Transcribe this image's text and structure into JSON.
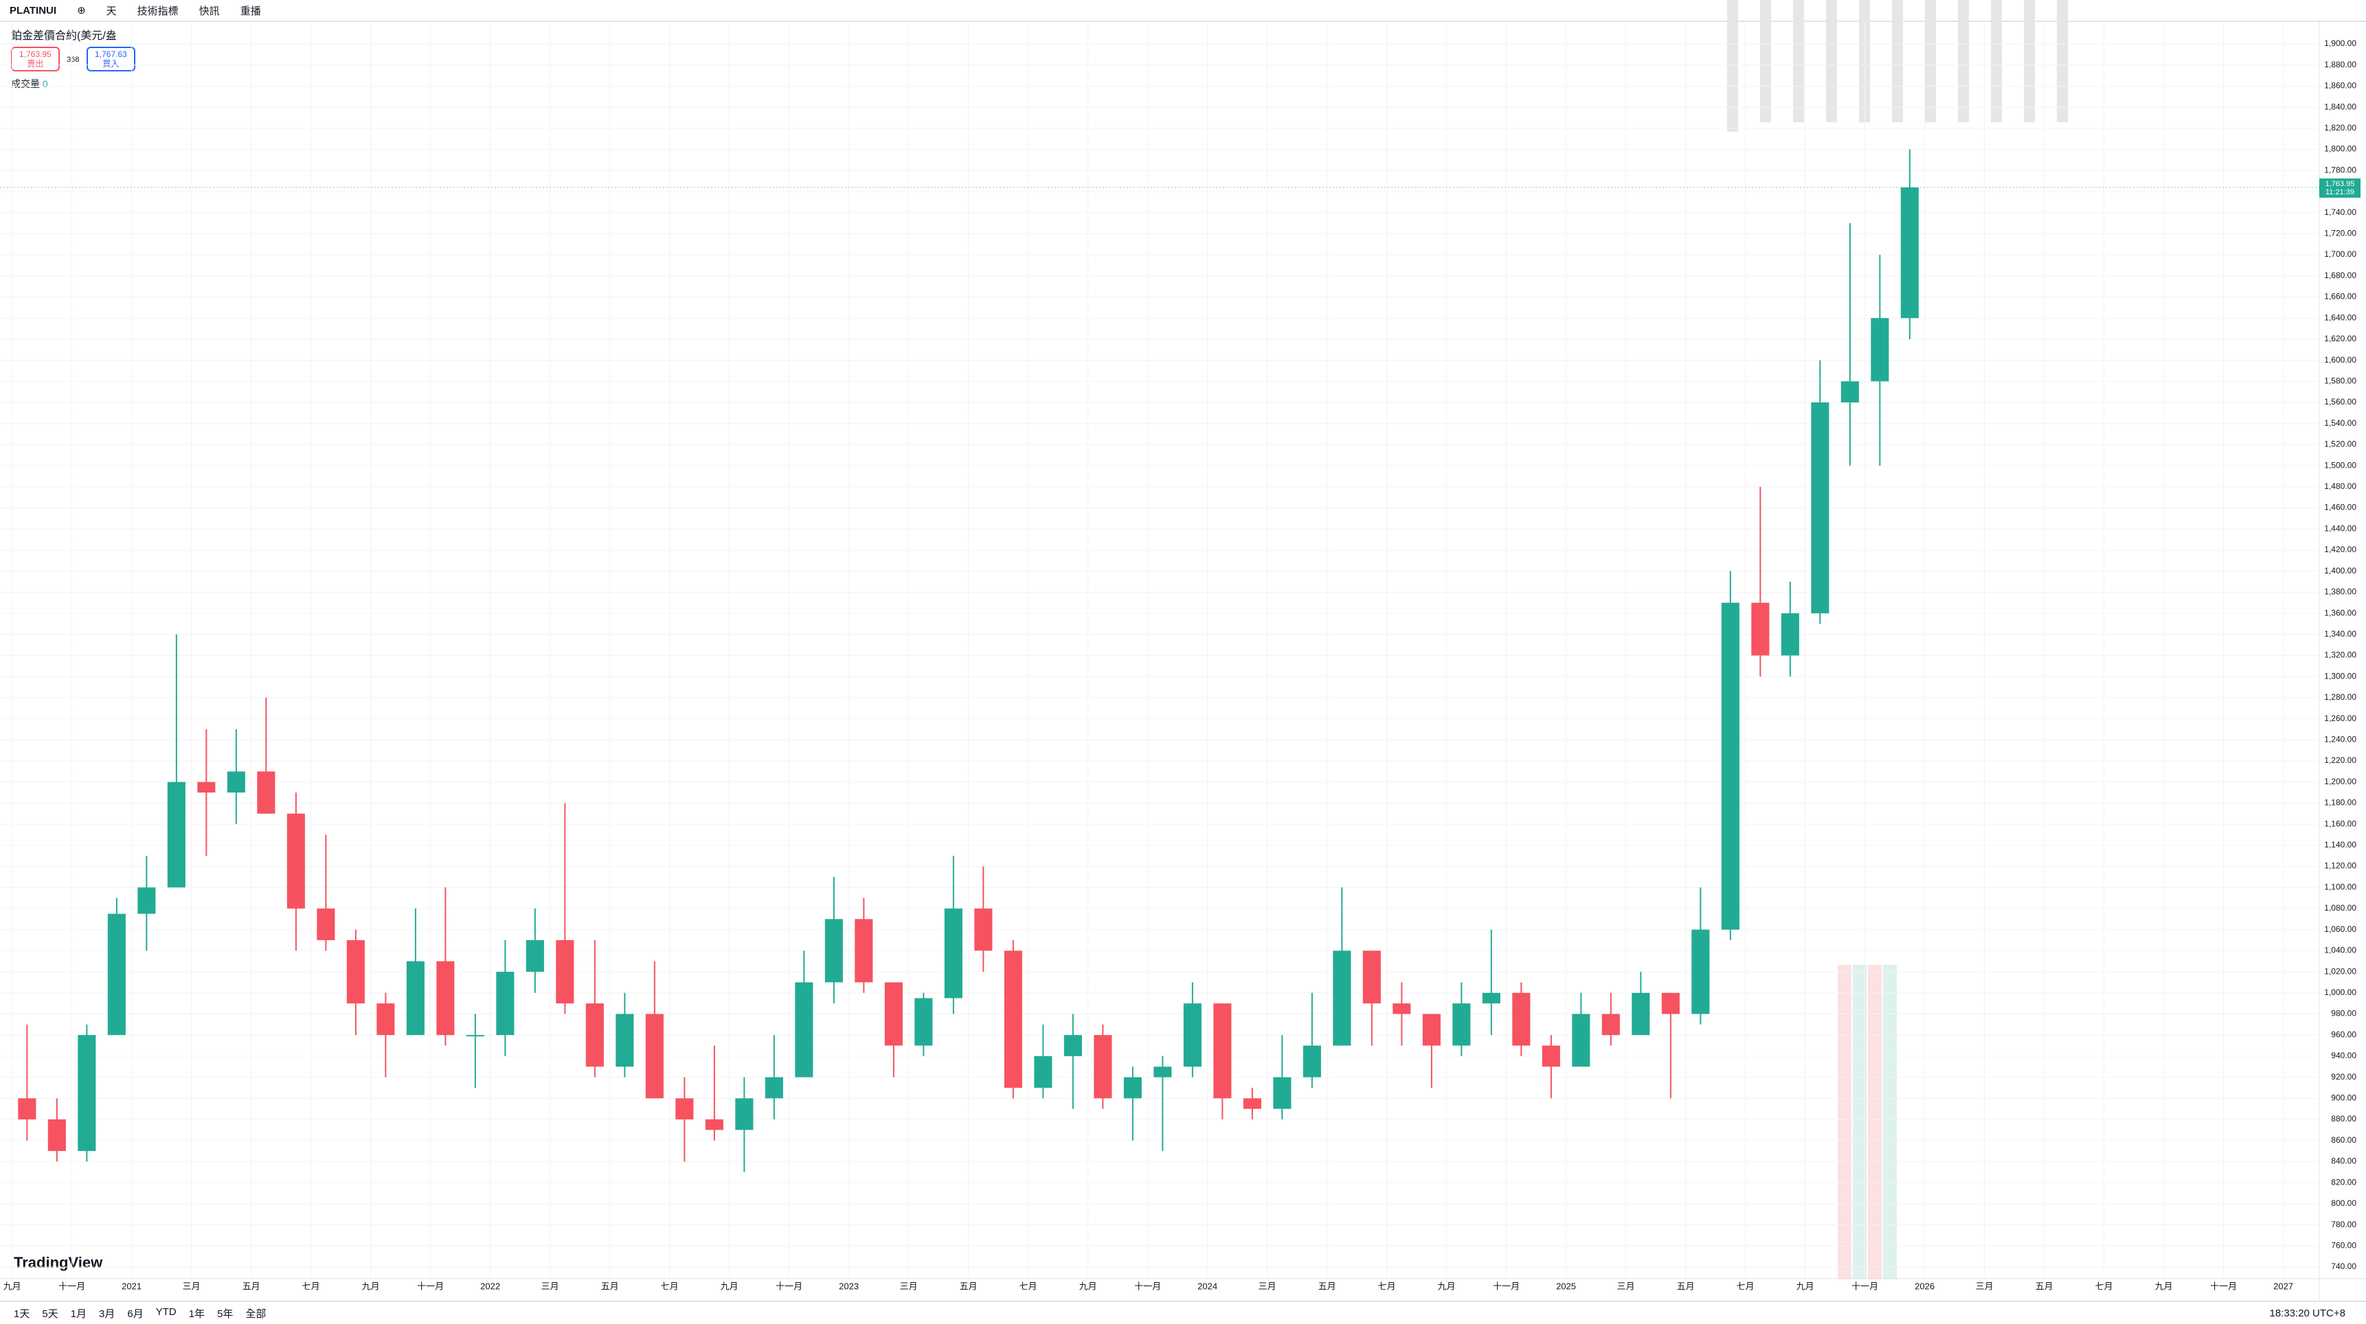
{
  "toolbar": {
    "symbol": "PLATINUI",
    "interval": "天",
    "indicators": "技術指標",
    "alerts": "快訊",
    "replay": "重播"
  },
  "legend": {
    "title": "鉑金差價合約(美元/盎",
    "sell_price": "1,763.95",
    "sell_label": "賣出",
    "spread": "368",
    "buy_price": "1,767.63",
    "buy_label": "買入",
    "volume_label": "成交量",
    "volume_value": "0"
  },
  "logo": "TradingView",
  "bottom_bar": {
    "ranges": [
      "1天",
      "5天",
      "1月",
      "3月",
      "6月",
      "YTD",
      "1年",
      "5年",
      "全部"
    ],
    "clock": "18:33:20 UTC+8"
  },
  "chart_data": {
    "type": "candlestick",
    "up_color": "#22ab94",
    "down_color": "#f7525f",
    "grid": true,
    "x_labels": [
      "九月",
      "十一月",
      "2021",
      "三月",
      "五月",
      "七月",
      "九月",
      "十一月",
      "2022",
      "三月",
      "五月",
      "七月",
      "九月",
      "十一月",
      "2023",
      "三月",
      "五月",
      "七月",
      "九月",
      "十一月",
      "2024",
      "三月",
      "五月",
      "七月",
      "九月",
      "十一月",
      "2025",
      "三月",
      "五月",
      "七月",
      "九月",
      "十一月",
      "2026",
      "三月",
      "五月",
      "七月",
      "九月",
      "十一月",
      "2027"
    ],
    "open": [
      900,
      880,
      850,
      960,
      1075,
      1100,
      1200,
      1190,
      1210,
      1170,
      1080,
      1050,
      990,
      960,
      1030,
      960,
      960,
      1020,
      1050,
      990,
      930,
      980,
      900,
      880,
      870,
      900,
      920,
      1010,
      1070,
      1010,
      950,
      995,
      1080,
      1040,
      910,
      940,
      960,
      900,
      920,
      930,
      990,
      900,
      890,
      920,
      950,
      1040,
      990,
      980,
      950,
      990,
      1000,
      950,
      930,
      980,
      960,
      1000,
      980,
      1060,
      1370,
      1320,
      1360,
      1560,
      1580,
      1640
    ],
    "high": [
      970,
      900,
      970,
      1090,
      1130,
      1340,
      1250,
      1250,
      1280,
      1190,
      1150,
      1060,
      1000,
      1080,
      1100,
      980,
      1050,
      1080,
      1180,
      1050,
      1000,
      1030,
      920,
      950,
      920,
      960,
      1040,
      1110,
      1090,
      1010,
      1000,
      1130,
      1120,
      1050,
      970,
      980,
      970,
      930,
      940,
      1010,
      990,
      910,
      960,
      1000,
      1100,
      1040,
      1010,
      980,
      1010,
      1060,
      1010,
      960,
      1000,
      1000,
      1020,
      1000,
      1100,
      1400,
      1480,
      1390,
      1600,
      1730,
      1700,
      1800
    ],
    "low": [
      860,
      840,
      840,
      960,
      1040,
      1100,
      1130,
      1160,
      1170,
      1040,
      1040,
      960,
      920,
      960,
      950,
      910,
      940,
      1000,
      980,
      920,
      920,
      900,
      840,
      860,
      830,
      880,
      920,
      990,
      1000,
      920,
      940,
      980,
      1020,
      900,
      900,
      890,
      890,
      860,
      850,
      920,
      880,
      880,
      880,
      910,
      950,
      950,
      950,
      910,
      940,
      960,
      940,
      900,
      930,
      950,
      960,
      900,
      970,
      1050,
      1300,
      1300,
      1350,
      1500,
      1500,
      1620
    ],
    "close": [
      880,
      850,
      960,
      1075,
      1100,
      1200,
      1190,
      1210,
      1170,
      1080,
      1050,
      990,
      960,
      1030,
      960,
      960,
      1020,
      1050,
      990,
      930,
      980,
      900,
      880,
      870,
      900,
      920,
      1010,
      1070,
      1010,
      950,
      995,
      1080,
      1040,
      910,
      940,
      960,
      900,
      920,
      930,
      990,
      900,
      890,
      920,
      950,
      1040,
      990,
      980,
      950,
      990,
      1000,
      950,
      930,
      980,
      960,
      1000,
      980,
      1060,
      1370,
      1320,
      1360,
      1560,
      1580,
      1640,
      1763.95
    ],
    "price_label": "1,763.95",
    "countdown": "11:21:39",
    "ylim": [
      740,
      1900
    ],
    "yticks": [
      {
        "value": 740,
        "label": "740.00"
      },
      {
        "value": 760,
        "label": "760.00"
      },
      {
        "value": 780,
        "label": "780.00"
      },
      {
        "value": 800,
        "label": "800.00"
      },
      {
        "value": 820,
        "label": "820.00"
      },
      {
        "value": 840,
        "label": "840.00"
      },
      {
        "value": 860,
        "label": "860.00"
      },
      {
        "value": 880,
        "label": "880.00"
      },
      {
        "value": 900,
        "label": "900.00"
      },
      {
        "value": 920,
        "label": "920.00"
      },
      {
        "value": 940,
        "label": "940.00"
      },
      {
        "value": 960,
        "label": "960.00"
      },
      {
        "value": 980,
        "label": "980.00"
      },
      {
        "value": 1000,
        "label": "1,000.00"
      },
      {
        "value": 1020,
        "label": "1,020.00"
      },
      {
        "value": 1040,
        "label": "1,040.00"
      },
      {
        "value": 1060,
        "label": "1,060.00"
      },
      {
        "value": 1080,
        "label": "1,080.00"
      },
      {
        "value": 1100,
        "label": "1,100.00"
      },
      {
        "value": 1120,
        "label": "1,120.00"
      },
      {
        "value": 1140,
        "label": "1,140.00"
      },
      {
        "value": 1160,
        "label": "1,160.00"
      },
      {
        "value": 1180,
        "label": "1,180.00"
      },
      {
        "value": 1200,
        "label": "1,200.00"
      },
      {
        "value": 1220,
        "label": "1,220.00"
      },
      {
        "value": 1240,
        "label": "1,240.00"
      },
      {
        "value": 1260,
        "label": "1,260.00"
      },
      {
        "value": 1280,
        "label": "1,280.00"
      },
      {
        "value": 1300,
        "label": "1,300.00"
      },
      {
        "value": 1320,
        "label": "1,320.00"
      },
      {
        "value": 1340,
        "label": "1,340.00"
      },
      {
        "value": 1360,
        "label": "1,360.00"
      },
      {
        "value": 1380,
        "label": "1,380.00"
      },
      {
        "value": 1400,
        "label": "1,400.00"
      },
      {
        "value": 1420,
        "label": "1,420.00"
      },
      {
        "value": 1440,
        "label": "1,440.00"
      },
      {
        "value": 1460,
        "label": "1,460.00"
      },
      {
        "value": 1480,
        "label": "1,480.00"
      },
      {
        "value": 1500,
        "label": "1,500.00"
      },
      {
        "value": 1520,
        "label": "1,520.00"
      },
      {
        "value": 1540,
        "label": "1,540.00"
      },
      {
        "value": 1560,
        "label": "1,560.00"
      },
      {
        "value": 1580,
        "label": "1,580.00"
      },
      {
        "value": 1600,
        "label": "1,600.00"
      },
      {
        "value": 1620,
        "label": "1,620.00"
      },
      {
        "value": 1640,
        "label": "1,640.00"
      },
      {
        "value": 1660,
        "label": "1,660.00"
      },
      {
        "value": 1680,
        "label": "1,680.00"
      },
      {
        "value": 1700,
        "label": "1,700.00"
      },
      {
        "value": 1720,
        "label": "1,720.00"
      },
      {
        "value": 1740,
        "label": "1,740.00"
      },
      {
        "value": 1760,
        "label": "1,760.00"
      },
      {
        "value": 1780,
        "label": "1,780.00"
      },
      {
        "value": 1800,
        "label": "1,800.00"
      },
      {
        "value": 1820,
        "label": "1,820.00"
      },
      {
        "value": 1840,
        "label": "1,840.00"
      },
      {
        "value": 1860,
        "label": "1,860.00"
      },
      {
        "value": 1880,
        "label": "1,880.00"
      },
      {
        "value": 1900,
        "label": "1,900.00"
      }
    ]
  }
}
